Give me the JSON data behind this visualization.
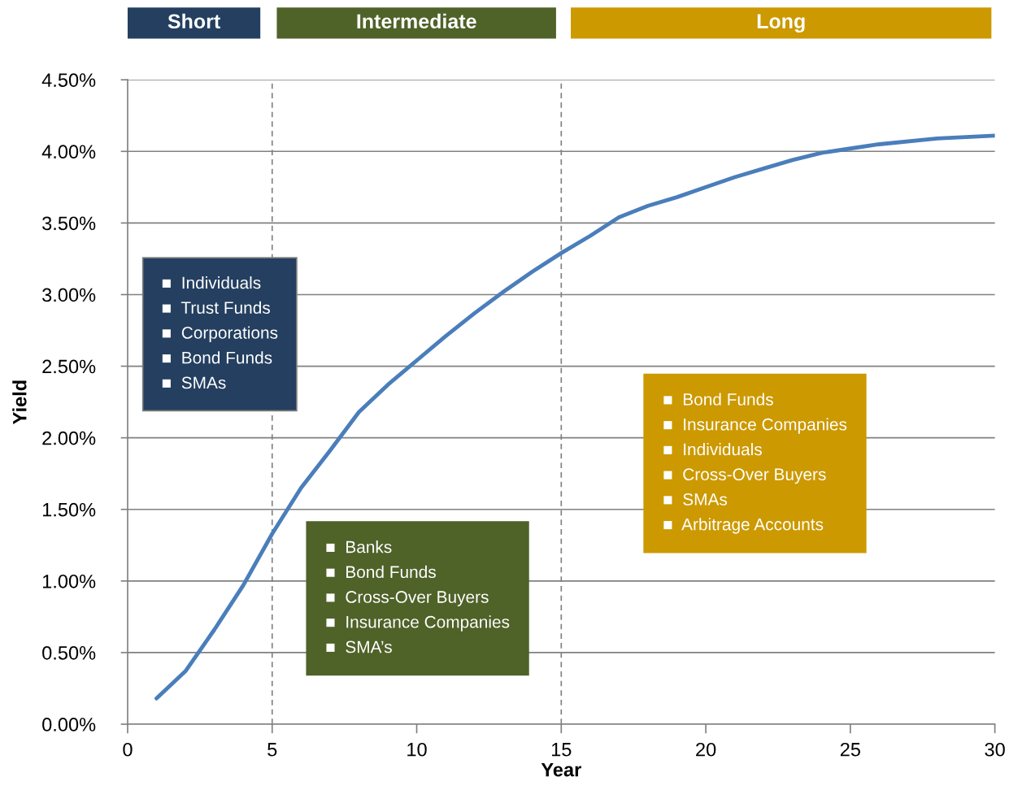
{
  "chart_data": {
    "type": "line",
    "xlabel": "Year",
    "ylabel": "Yield",
    "x": [
      1,
      2,
      3,
      4,
      5,
      6,
      7,
      8,
      9,
      10,
      11,
      12,
      13,
      14,
      15,
      16,
      17,
      18,
      19,
      20,
      21,
      22,
      23,
      24,
      25,
      26,
      28,
      30
    ],
    "series": [
      {
        "color": "#4a7ebb",
        "values": [
          0.18,
          0.37,
          0.66,
          0.97,
          1.33,
          1.65,
          1.91,
          2.18,
          2.37,
          2.54,
          2.71,
          2.87,
          3.02,
          3.16,
          3.29,
          3.41,
          3.54,
          3.62,
          3.68,
          3.75,
          3.82,
          3.88,
          3.94,
          3.99,
          4.02,
          4.05,
          4.09,
          4.11
        ]
      }
    ],
    "xlim": [
      0,
      30
    ],
    "xticks": [
      0,
      5,
      10,
      15,
      20,
      25,
      30
    ],
    "ylim": [
      0,
      4.5
    ],
    "yticks": [
      {
        "value": 0,
        "label": "0.00%"
      },
      {
        "value": 0.5,
        "label": "0.50%"
      },
      {
        "value": 1,
        "label": "1.00%"
      },
      {
        "value": 1.5,
        "label": "1.50%"
      },
      {
        "value": 2,
        "label": "2.00%"
      },
      {
        "value": 2.5,
        "label": "2.50%"
      },
      {
        "value": 3,
        "label": "3.00%"
      },
      {
        "value": 3.5,
        "label": "3.50%"
      },
      {
        "value": 4,
        "label": "4.00%"
      },
      {
        "value": 4.5,
        "label": "4.50%"
      }
    ],
    "grid": "y",
    "marker": "none",
    "line_style": "solid",
    "legend": false,
    "ref_lines": [
      {
        "axis": "x",
        "value": 5,
        "color": "#808080",
        "line_style": "dashed"
      },
      {
        "axis": "x",
        "value": 15,
        "color": "#808080",
        "line_style": "dashed"
      }
    ],
    "annotations": [
      "Short",
      "Intermediate",
      "Long",
      "■  Individuals\n■  Trust Funds\n■  Corporations\n■  Bond Funds\n■  SMAs",
      "■  Banks\n■  Bond Funds\n■  Cross-Over Buyers\n■  Insurance Companies\n■  SMA’s",
      "■  Bond Funds\n■  Insurance Companies\n■  Individuals\n■  Cross-Over Buyers\n■  SMAs\n■  Arbitrage Accounts"
    ]
  }
}
